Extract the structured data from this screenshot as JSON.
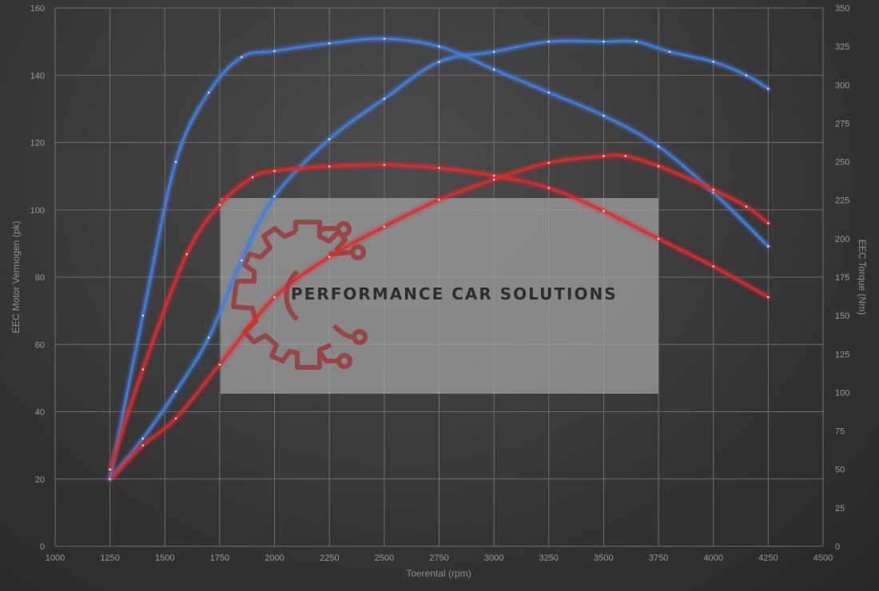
{
  "chart_data": {
    "type": "line",
    "xlabel": "Toerental (rpm)",
    "ylabel_left": "EEC Motor Vermogen (pk)",
    "ylabel_right": "EEC Torque (Nm)",
    "xlim": [
      1000,
      4500
    ],
    "ylim_left": [
      0,
      160
    ],
    "ylim_right": [
      0,
      350
    ],
    "x_ticks": [
      "1000",
      "1250",
      "1500",
      "1750",
      "2000",
      "2250",
      "2500",
      "2750",
      "3000",
      "3250",
      "3500",
      "3750",
      "4000",
      "4250",
      "4500"
    ],
    "y_left_ticks": [
      "0",
      "20",
      "40",
      "60",
      "80",
      "100",
      "120",
      "140",
      "160"
    ],
    "y_right_ticks": [
      "0",
      "25",
      "50",
      "75",
      "100",
      "125",
      "150",
      "175",
      "200",
      "225",
      "250",
      "275",
      "300",
      "325",
      "350"
    ],
    "grid": true,
    "series": [
      {
        "axis": "left",
        "color": "#3f7fe0",
        "x": [
          1250,
          1400,
          1550,
          1700,
          1850,
          2000,
          2250,
          2500,
          2750,
          3000,
          3250,
          3500,
          3650,
          3800,
          4000,
          4150,
          4250
        ],
        "values": [
          20,
          32,
          46,
          62,
          85,
          104,
          121,
          133,
          144,
          147,
          150,
          150,
          150,
          147,
          144,
          140,
          136
        ]
      },
      {
        "axis": "right",
        "color": "#3f7fe0",
        "x": [
          1250,
          1400,
          1550,
          1700,
          1850,
          2000,
          2250,
          2500,
          2750,
          3000,
          3250,
          3500,
          3750,
          4000,
          4250
        ],
        "values": [
          44,
          150,
          250,
          295,
          318,
          322,
          327,
          330,
          325,
          310,
          295,
          280,
          260,
          230,
          195
        ]
      },
      {
        "axis": "left",
        "color": "#e02a2a",
        "x": [
          1250,
          1400,
          1550,
          1750,
          2000,
          2250,
          2500,
          2750,
          3000,
          3250,
          3500,
          3600,
          3750,
          4000,
          4150,
          4250
        ],
        "values": [
          20,
          30,
          38,
          54,
          74,
          86,
          95,
          103,
          109,
          114,
          116,
          116,
          113,
          106,
          101,
          96
        ]
      },
      {
        "axis": "right",
        "color": "#e02a2a",
        "x": [
          1250,
          1400,
          1600,
          1750,
          1900,
          2000,
          2250,
          2500,
          2750,
          3000,
          3250,
          3500,
          3750,
          4000,
          4250
        ],
        "values": [
          50,
          115,
          190,
          222,
          240,
          244,
          247,
          248,
          246,
          241,
          233,
          218,
          200,
          182,
          162
        ]
      }
    ]
  },
  "watermark": {
    "text": "PERFORMANCE CAR SOLUTIONS",
    "logo": "gear-circuit-logo"
  }
}
